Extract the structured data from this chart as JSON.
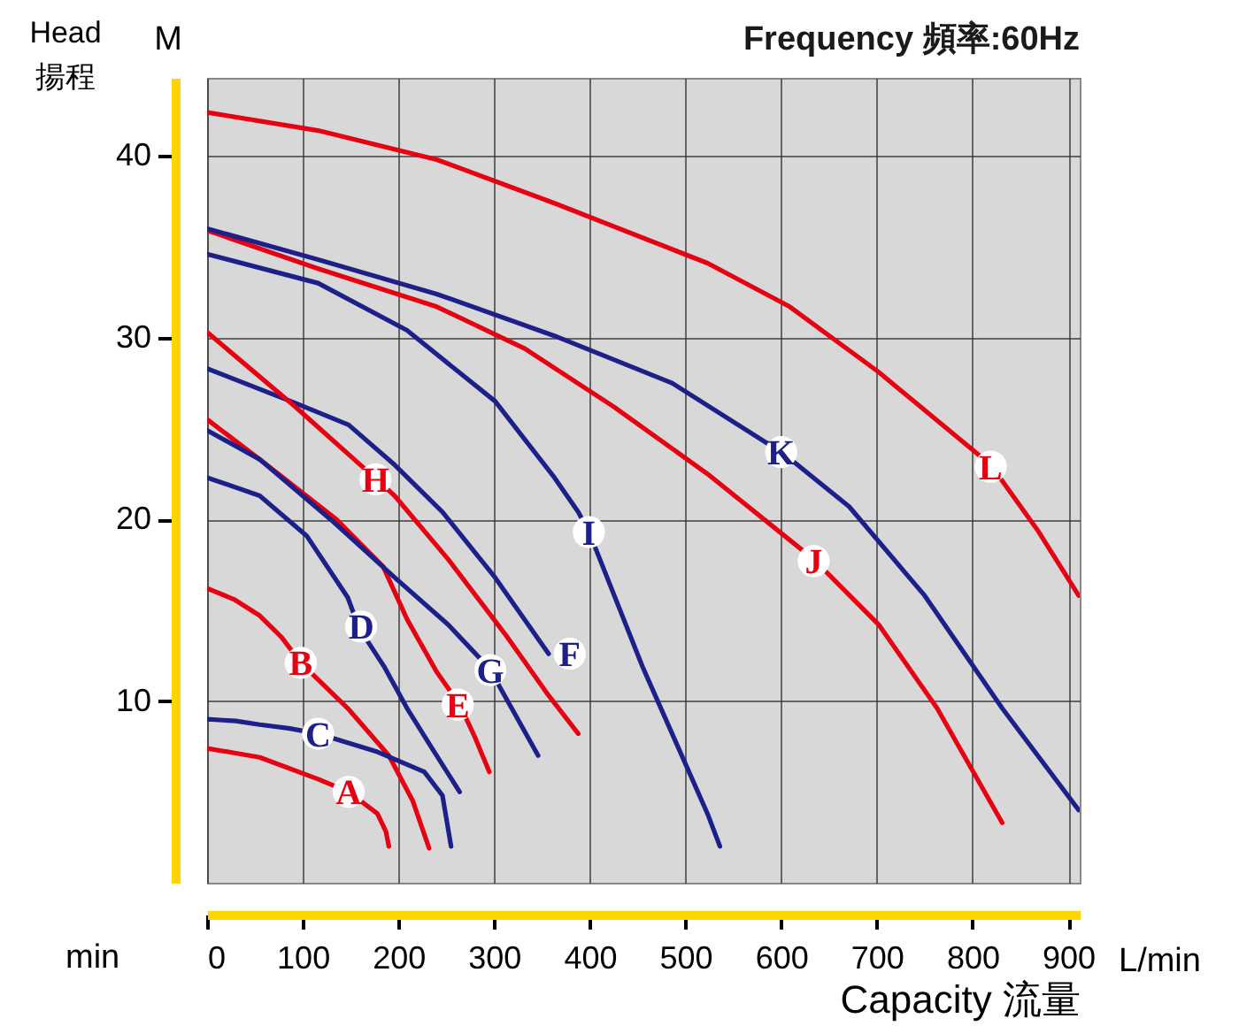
{
  "chart_data": {
    "type": "line",
    "title": "Frequency 頻率:60Hz",
    "xlabel": "Capacity 流量",
    "ylabel": "Head 揚程",
    "xlim": [
      0,
      912
    ],
    "ylim": [
      0,
      44.3
    ],
    "xticks": [
      0,
      100,
      200,
      300,
      400,
      500,
      600,
      700,
      800,
      900
    ],
    "yticks": [
      10,
      20,
      30,
      40
    ],
    "grid": true,
    "series": [
      {
        "color": "#e60012",
        "x": [
          0,
          55,
          116,
          148,
          178,
          187,
          190
        ],
        "values": [
          7.4,
          6.9,
          5.7,
          5.0,
          3.8,
          2.8,
          2.0
        ]
      },
      {
        "color": "#e60012",
        "x": [
          0,
          28,
          55,
          78,
          98,
          147,
          190,
          215,
          232
        ],
        "values": [
          16.2,
          15.6,
          14.7,
          13.5,
          12.1,
          9.6,
          7.0,
          4.5,
          1.9
        ]
      },
      {
        "color": "#1d2088",
        "x": [
          0,
          30,
          55,
          85,
          116,
          178,
          227,
          246,
          255
        ],
        "values": [
          9.0,
          8.9,
          8.7,
          8.5,
          8.2,
          7.2,
          6.1,
          4.8,
          2.0
        ]
      },
      {
        "color": "#1d2088",
        "x": [
          0,
          55,
          104,
          147,
          159,
          185,
          209,
          235,
          264
        ],
        "values": [
          22.3,
          21.3,
          19.1,
          15.7,
          14.0,
          11.9,
          9.6,
          7.4,
          5.0
        ]
      },
      {
        "color": "#e60012",
        "x": [
          0,
          55,
          135,
          184,
          209,
          240,
          264,
          280,
          295
        ],
        "values": [
          25.5,
          23.3,
          20.0,
          17.4,
          14.5,
          11.6,
          9.8,
          8.0,
          6.1
        ]
      },
      {
        "color": "#1d2088",
        "x": [
          0,
          92,
          148,
          196,
          246,
          301,
          357
        ],
        "values": [
          28.3,
          26.4,
          25.2,
          23.0,
          20.4,
          16.8,
          12.6
        ]
      },
      {
        "color": "#1d2088",
        "x": [
          0,
          55,
          129,
          196,
          252,
          295,
          346
        ],
        "values": [
          24.9,
          23.3,
          20.0,
          16.8,
          14.2,
          11.8,
          7.0
        ]
      },
      {
        "color": "#e60012",
        "x": [
          0,
          92,
          175,
          196,
          252,
          314,
          357,
          388
        ],
        "values": [
          30.3,
          26.2,
          22.3,
          21.3,
          17.8,
          13.5,
          10.3,
          8.2
        ]
      },
      {
        "color": "#1d2088",
        "x": [
          0,
          116,
          209,
          301,
          363,
          388,
          400,
          455,
          523,
          536
        ],
        "values": [
          34.6,
          33.0,
          30.4,
          26.5,
          22.3,
          20.4,
          19.2,
          11.9,
          3.8,
          2.0
        ]
      },
      {
        "color": "#e60012",
        "x": [
          0,
          116,
          240,
          332,
          425,
          523,
          634,
          702,
          763,
          831
        ],
        "values": [
          35.9,
          33.8,
          31.7,
          29.4,
          26.2,
          22.5,
          17.8,
          14.2,
          9.6,
          3.3
        ]
      },
      {
        "color": "#1d2088",
        "x": [
          0,
          116,
          240,
          363,
          486,
          603,
          671,
          750,
          831,
          911
        ],
        "values": [
          36.0,
          34.3,
          32.4,
          30.1,
          27.5,
          23.6,
          20.7,
          15.8,
          9.6,
          4.0
        ]
      },
      {
        "color": "#e60012",
        "x": [
          0,
          116,
          240,
          363,
          523,
          609,
          702,
          819,
          868,
          911
        ],
        "values": [
          42.4,
          41.4,
          39.8,
          37.4,
          34.1,
          31.7,
          28.1,
          23.0,
          19.4,
          15.8
        ]
      }
    ],
    "annotations": [
      {
        "text": "A",
        "x": 148,
        "y": 5.0
      },
      {
        "text": "B",
        "x": 98,
        "y": 12.1
      },
      {
        "text": "C",
        "x": 116,
        "y": 8.2
      },
      {
        "text": "D",
        "x": 161,
        "y": 14.1
      },
      {
        "text": "E",
        "x": 262,
        "y": 9.8
      },
      {
        "text": "F",
        "x": 379,
        "y": 12.6
      },
      {
        "text": "G",
        "x": 296,
        "y": 11.7
      },
      {
        "text": "H",
        "x": 176,
        "y": 22.2
      },
      {
        "text": "I",
        "x": 399,
        "y": 19.3
      },
      {
        "text": "J",
        "x": 634,
        "y": 17.7
      },
      {
        "text": "K",
        "x": 600,
        "y": 23.7
      },
      {
        "text": "L",
        "x": 819,
        "y": 22.9
      },
      "M",
      "L/min",
      "min"
    ]
  }
}
